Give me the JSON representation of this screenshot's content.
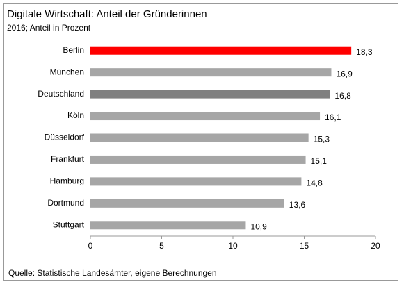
{
  "chart_data": {
    "type": "barh",
    "title": "Digitale Wirtschaft: Anteil der Gründerinnen",
    "subtitle": "2016; Anteil in Prozent",
    "source": "Quelle: Statistische Landesämter, eigene Berechnungen",
    "categories": [
      "Berlin",
      "München",
      "Deutschland",
      "Köln",
      "Düsseldorf",
      "Frankfurt",
      "Hamburg",
      "Dortmund",
      "Stuttgart"
    ],
    "values": [
      18.3,
      16.9,
      16.8,
      16.1,
      15.3,
      15.1,
      14.8,
      13.6,
      10.9
    ],
    "value_labels": [
      "18,3",
      "16,9",
      "16,8",
      "16,1",
      "15,3",
      "15,1",
      "14,8",
      "13,6",
      "10,9"
    ],
    "colors": [
      "#ff0000",
      "#a6a6a6",
      "#808080",
      "#a6a6a6",
      "#a6a6a6",
      "#a6a6a6",
      "#a6a6a6",
      "#a6a6a6",
      "#a6a6a6"
    ],
    "xlim": [
      0,
      20
    ],
    "xticks": [
      0,
      5,
      10,
      15,
      20
    ]
  }
}
